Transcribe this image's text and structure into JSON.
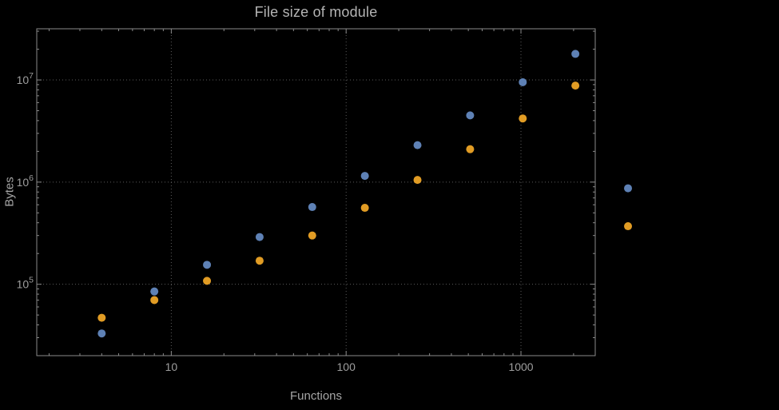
{
  "page": {
    "background": "#000000"
  },
  "chart_data": {
    "type": "scatter",
    "title": "File size of module",
    "xlabel": "Functions",
    "ylabel": "Bytes",
    "x_scale": "log",
    "y_scale": "log",
    "xlim": [
      1.7,
      2660
    ],
    "ylim": [
      20000,
      31700000
    ],
    "grid": "dotted",
    "x_ticks": [
      10,
      100,
      1000
    ],
    "x_tick_labels": [
      "10",
      "100",
      "1000"
    ],
    "y_ticks": [
      100000,
      1000000,
      10000000
    ],
    "y_tick_labels": [
      "10^5",
      "10^6",
      "10^7"
    ],
    "x": [
      4,
      8,
      16,
      32,
      64,
      128,
      256,
      512,
      1024,
      2048,
      4096
    ],
    "series": [
      {
        "name": "blue",
        "color": "#5e81b5",
        "values": [
          33000,
          85000,
          155000,
          290000,
          570000,
          1150000,
          2300000,
          4500000,
          9500000,
          18000000,
          870000
        ]
      },
      {
        "name": "orange",
        "color": "#e19c24",
        "values": [
          47000,
          70000,
          108000,
          170000,
          300000,
          560000,
          1050000,
          2100000,
          4200000,
          8800000,
          370000
        ]
      }
    ],
    "colors": {
      "frame": "#8a8a8a",
      "gridline": "#5c5c5c",
      "tick_text": "#9e9e9e"
    }
  }
}
